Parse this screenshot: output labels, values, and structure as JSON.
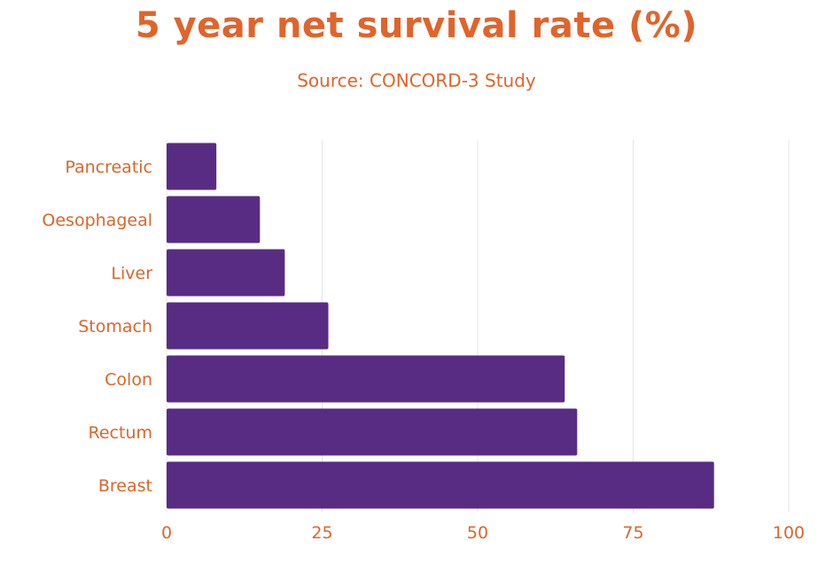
{
  "chart_data": {
    "type": "bar",
    "orientation": "horizontal",
    "title": "5 year net survival rate (%)",
    "subtitle": "Source: CONCORD-3 Study",
    "categories": [
      "Pancreatic",
      "Oesophageal",
      "Liver",
      "Stomach",
      "Colon",
      "Rectum",
      "Breast"
    ],
    "values": [
      8,
      15,
      19,
      26,
      64,
      66,
      88
    ],
    "xlim": [
      0,
      100
    ],
    "xticks": [
      0,
      25,
      50,
      75,
      100
    ],
    "xtick_labels": [
      "0",
      "25",
      "50",
      "75",
      "100"
    ],
    "grid": true,
    "colors": {
      "bar": "#582c83",
      "text": "#e0642b",
      "grid": "#e6e6e6"
    }
  }
}
